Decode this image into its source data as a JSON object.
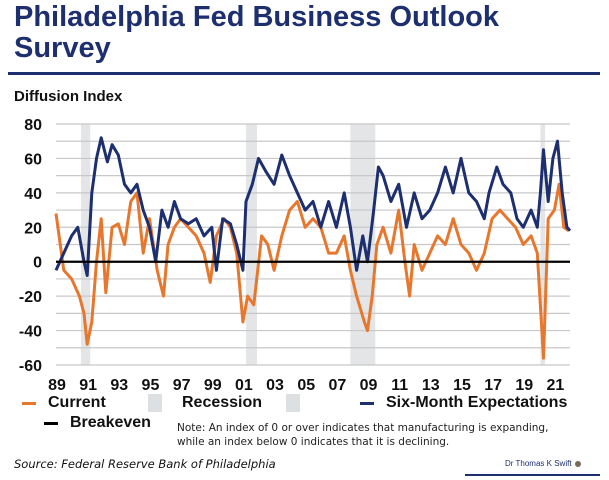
{
  "header": {
    "title": "Philadelphia Fed Business Outlook Survey"
  },
  "chart_data": {
    "type": "line",
    "title": "Philadelphia Fed Business Outlook Survey",
    "ylabel": "Diffusion Index",
    "xlabel": "",
    "ylim": [
      -60,
      80
    ],
    "xlim": [
      1989,
      2022
    ],
    "yticks": [
      "80",
      "60",
      "40",
      "20",
      "0",
      "-20",
      "-40",
      "-60"
    ],
    "ytick_values": [
      80,
      60,
      40,
      20,
      0,
      -20,
      -40,
      -60
    ],
    "xticks": [
      "89",
      "91",
      "93",
      "95",
      "97",
      "99",
      "01",
      "03",
      "05",
      "07",
      "09",
      "11",
      "13",
      "15",
      "17",
      "19",
      "21"
    ],
    "xtick_values": [
      1989,
      1991,
      1993,
      1995,
      1997,
      1999,
      2001,
      2003,
      2005,
      2007,
      2009,
      2011,
      2013,
      2015,
      2017,
      2019,
      2021
    ],
    "grid": true,
    "recessions": [
      [
        1990.6,
        1991.2
      ],
      [
        2001.2,
        2001.9
      ],
      [
        2007.9,
        2009.5
      ],
      [
        2020.1,
        2020.4
      ]
    ],
    "breakeven": 0,
    "series": [
      {
        "name": "Current",
        "color": "#e8772e",
        "points": [
          [
            1989,
            28
          ],
          [
            1989.5,
            -5
          ],
          [
            1990,
            -10
          ],
          [
            1990.5,
            -20
          ],
          [
            1990.8,
            -30
          ],
          [
            1991,
            -48
          ],
          [
            1991.3,
            -35
          ],
          [
            1991.6,
            0
          ],
          [
            1991.9,
            25
          ],
          [
            1992.2,
            -18
          ],
          [
            1992.6,
            20
          ],
          [
            1993,
            22
          ],
          [
            1993.4,
            10
          ],
          [
            1993.8,
            35
          ],
          [
            1994.2,
            40
          ],
          [
            1994.6,
            5
          ],
          [
            1995,
            25
          ],
          [
            1995.5,
            -5
          ],
          [
            1995.9,
            -20
          ],
          [
            1996.2,
            10
          ],
          [
            1996.6,
            20
          ],
          [
            1997,
            25
          ],
          [
            1997.5,
            20
          ],
          [
            1998,
            15
          ],
          [
            1998.5,
            5
          ],
          [
            1998.9,
            -12
          ],
          [
            1999.3,
            15
          ],
          [
            1999.8,
            25
          ],
          [
            2000.2,
            20
          ],
          [
            2000.6,
            5
          ],
          [
            2001,
            -35
          ],
          [
            2001.3,
            -20
          ],
          [
            2001.7,
            -25
          ],
          [
            2002.2,
            15
          ],
          [
            2002.6,
            10
          ],
          [
            2003,
            -5
          ],
          [
            2003.5,
            15
          ],
          [
            2004,
            30
          ],
          [
            2004.5,
            35
          ],
          [
            2005,
            20
          ],
          [
            2005.5,
            25
          ],
          [
            2006,
            20
          ],
          [
            2006.5,
            5
          ],
          [
            2007,
            5
          ],
          [
            2007.5,
            15
          ],
          [
            2007.9,
            -5
          ],
          [
            2008.3,
            -20
          ],
          [
            2008.8,
            -35
          ],
          [
            2009,
            -40
          ],
          [
            2009.3,
            -20
          ],
          [
            2009.6,
            10
          ],
          [
            2010,
            20
          ],
          [
            2010.5,
            5
          ],
          [
            2011,
            30
          ],
          [
            2011.4,
            0
          ],
          [
            2011.7,
            -20
          ],
          [
            2012,
            10
          ],
          [
            2012.5,
            -5
          ],
          [
            2013,
            5
          ],
          [
            2013.5,
            15
          ],
          [
            2014,
            10
          ],
          [
            2014.5,
            25
          ],
          [
            2015,
            10
          ],
          [
            2015.5,
            5
          ],
          [
            2016,
            -5
          ],
          [
            2016.5,
            5
          ],
          [
            2017,
            25
          ],
          [
            2017.5,
            30
          ],
          [
            2018,
            25
          ],
          [
            2018.5,
            20
          ],
          [
            2019,
            10
          ],
          [
            2019.5,
            15
          ],
          [
            2019.9,
            5
          ],
          [
            2020.3,
            -56
          ],
          [
            2020.6,
            25
          ],
          [
            2021,
            30
          ],
          [
            2021.3,
            45
          ],
          [
            2021.6,
            20
          ],
          [
            2021.9,
            18
          ]
        ]
      },
      {
        "name": "Six-Month Expectations",
        "color": "#1d2f6f",
        "points": [
          [
            1989,
            -5
          ],
          [
            1989.5,
            5
          ],
          [
            1990,
            15
          ],
          [
            1990.4,
            20
          ],
          [
            1990.8,
            0
          ],
          [
            1991,
            -8
          ],
          [
            1991.3,
            40
          ],
          [
            1991.6,
            60
          ],
          [
            1991.9,
            72
          ],
          [
            1992.3,
            58
          ],
          [
            1992.6,
            68
          ],
          [
            1993,
            62
          ],
          [
            1993.4,
            45
          ],
          [
            1993.8,
            40
          ],
          [
            1994.2,
            45
          ],
          [
            1994.6,
            30
          ],
          [
            1995,
            20
          ],
          [
            1995.4,
            0
          ],
          [
            1995.8,
            30
          ],
          [
            1996.2,
            20
          ],
          [
            1996.6,
            35
          ],
          [
            1997,
            25
          ],
          [
            1997.5,
            22
          ],
          [
            1998,
            25
          ],
          [
            1998.5,
            15
          ],
          [
            1999,
            20
          ],
          [
            1999.3,
            -5
          ],
          [
            1999.7,
            25
          ],
          [
            2000.2,
            22
          ],
          [
            2000.6,
            10
          ],
          [
            2001,
            -5
          ],
          [
            2001.2,
            35
          ],
          [
            2001.6,
            45
          ],
          [
            2002,
            60
          ],
          [
            2002.5,
            52
          ],
          [
            2003,
            45
          ],
          [
            2003.5,
            62
          ],
          [
            2004,
            50
          ],
          [
            2004.5,
            40
          ],
          [
            2005,
            30
          ],
          [
            2005.5,
            35
          ],
          [
            2006,
            20
          ],
          [
            2006.5,
            35
          ],
          [
            2007,
            20
          ],
          [
            2007.5,
            40
          ],
          [
            2007.9,
            20
          ],
          [
            2008.3,
            -5
          ],
          [
            2008.7,
            15
          ],
          [
            2009,
            0
          ],
          [
            2009.4,
            30
          ],
          [
            2009.7,
            55
          ],
          [
            2010,
            50
          ],
          [
            2010.5,
            35
          ],
          [
            2011,
            45
          ],
          [
            2011.5,
            20
          ],
          [
            2012,
            40
          ],
          [
            2012.5,
            25
          ],
          [
            2013,
            30
          ],
          [
            2013.5,
            40
          ],
          [
            2014,
            55
          ],
          [
            2014.5,
            40
          ],
          [
            2015,
            60
          ],
          [
            2015.5,
            40
          ],
          [
            2016,
            35
          ],
          [
            2016.5,
            25
          ],
          [
            2016.8,
            40
          ],
          [
            2017.3,
            55
          ],
          [
            2017.7,
            45
          ],
          [
            2018.2,
            40
          ],
          [
            2018.6,
            25
          ],
          [
            2019,
            20
          ],
          [
            2019.5,
            30
          ],
          [
            2019.9,
            20
          ],
          [
            2020.1,
            40
          ],
          [
            2020.3,
            65
          ],
          [
            2020.6,
            35
          ],
          [
            2020.9,
            60
          ],
          [
            2021.2,
            70
          ],
          [
            2021.5,
            40
          ],
          [
            2021.8,
            20
          ],
          [
            2022,
            18
          ]
        ]
      }
    ],
    "legend": {
      "position": "bottom",
      "items": [
        "Current",
        "Recession",
        "Six-Month Expectations",
        "Breakeven"
      ]
    },
    "annotations": [
      "Note: An index of 0 or over indicates that manufacturing is expanding,",
      "while an index below 0 indicates that it is declining."
    ]
  },
  "footer": {
    "source": "Source: Federal Reserve Bank of Philadelphia",
    "author": "Dr Thomas K Swift"
  }
}
